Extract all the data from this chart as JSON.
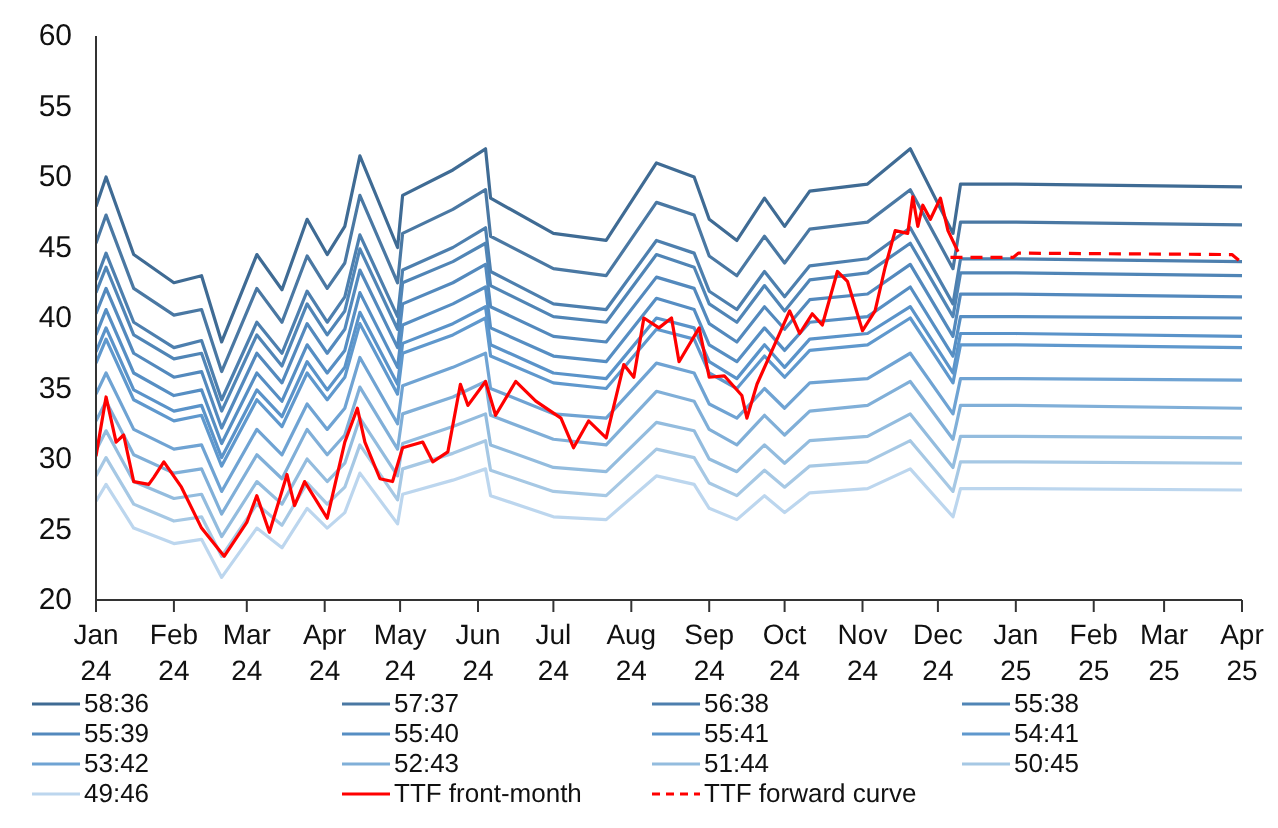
{
  "chart_data": {
    "type": "line",
    "legend": "bottom",
    "line_style": "solid",
    "x": [
      "2024-01-01",
      "2024-01-05",
      "2024-01-16",
      "2024-02-01",
      "2024-02-12",
      "2024-02-20",
      "2024-03-05",
      "2024-03-15",
      "2024-03-25",
      "2024-04-02",
      "2024-04-09",
      "2024-04-15",
      "2024-04-30",
      "2024-05-02",
      "2024-05-22",
      "2024-06-04",
      "2024-06-06",
      "2024-07-01",
      "2024-07-22",
      "2024-08-11",
      "2024-08-26",
      "2024-09-01",
      "2024-09-12",
      "2024-09-23",
      "2024-10-01",
      "2024-10-11",
      "2024-11-03",
      "2024-11-20",
      "2024-12-07",
      "2024-12-10",
      "2025-01-01",
      "2025-04-01"
    ],
    "xlim": [
      "2024-01-01",
      "2025-04-01"
    ],
    "xticks": [
      {
        "value": "2024-01-01",
        "label": "Jan 24"
      },
      {
        "value": "2024-02-01",
        "label": "Feb 24"
      },
      {
        "value": "2024-03-01",
        "label": "Mar 24"
      },
      {
        "value": "2024-04-01",
        "label": "Apr 24"
      },
      {
        "value": "2024-05-01",
        "label": "May 24"
      },
      {
        "value": "2024-06-01",
        "label": "Jun 24"
      },
      {
        "value": "2024-07-01",
        "label": "Jul 24"
      },
      {
        "value": "2024-08-01",
        "label": "Aug 24"
      },
      {
        "value": "2024-09-01",
        "label": "Sep 24"
      },
      {
        "value": "2024-10-01",
        "label": "Oct 24"
      },
      {
        "value": "2024-11-01",
        "label": "Nov 24"
      },
      {
        "value": "2024-12-01",
        "label": "Dec 24"
      },
      {
        "value": "2025-01-01",
        "label": "Jan 25"
      },
      {
        "value": "2025-02-01",
        "label": "Feb 25"
      },
      {
        "value": "2025-03-01",
        "label": "Mar 25"
      },
      {
        "value": "2025-04-01",
        "label": "Apr 25"
      }
    ],
    "ylim": [
      20,
      60
    ],
    "yticks": [
      20,
      25,
      30,
      35,
      40,
      45,
      50,
      55,
      60
    ],
    "series": [
      {
        "name": "58:36",
        "color": "#3f6b94",
        "values": [
          47.9,
          50.0,
          44.5,
          42.5,
          43.0,
          38.3,
          44.5,
          42.0,
          47.0,
          44.5,
          46.5,
          51.5,
          45.0,
          48.7,
          50.5,
          52.0,
          48.5,
          46.0,
          45.5,
          51.0,
          50.0,
          47.0,
          45.5,
          48.5,
          46.5,
          49.0,
          49.5,
          52.0,
          46.0,
          49.5,
          49.5,
          49.3
        ]
      },
      {
        "name": "57:37",
        "color": "#4a78a3",
        "values": [
          45.3,
          47.3,
          42.1,
          40.2,
          40.6,
          36.2,
          42.1,
          39.7,
          44.4,
          42.1,
          43.9,
          48.7,
          42.5,
          46.0,
          47.7,
          49.1,
          45.8,
          43.5,
          43.0,
          48.2,
          47.3,
          44.4,
          43.0,
          45.8,
          43.9,
          46.3,
          46.8,
          49.1,
          43.5,
          46.8,
          46.8,
          46.6
        ]
      },
      {
        "name": "56:38",
        "color": "#4d7fae",
        "values": [
          42.7,
          44.6,
          39.7,
          37.9,
          38.4,
          34.2,
          39.7,
          37.5,
          41.9,
          39.7,
          41.5,
          45.9,
          40.1,
          43.4,
          45.0,
          46.4,
          43.3,
          41.0,
          40.6,
          45.5,
          44.6,
          41.9,
          40.6,
          43.3,
          41.5,
          43.7,
          44.2,
          46.4,
          41.0,
          44.2,
          44.2,
          44.0
        ]
      },
      {
        "name": "55:38",
        "color": "#5085b6",
        "values": [
          41.8,
          43.6,
          38.8,
          37.1,
          37.5,
          33.4,
          38.8,
          36.6,
          41.0,
          38.8,
          40.5,
          44.9,
          39.2,
          42.5,
          44.0,
          45.3,
          42.3,
          40.1,
          39.7,
          44.5,
          43.6,
          41.0,
          39.7,
          42.3,
          40.5,
          42.7,
          43.2,
          45.3,
          40.1,
          43.2,
          43.2,
          43.0
        ]
      },
      {
        "name": "55:39",
        "color": "#5389bd",
        "values": [
          40.3,
          42.1,
          37.5,
          35.8,
          36.2,
          32.2,
          37.5,
          35.4,
          39.6,
          37.5,
          39.2,
          43.4,
          37.9,
          41.0,
          42.5,
          43.8,
          40.8,
          38.7,
          38.3,
          42.9,
          42.1,
          39.6,
          38.3,
          40.8,
          39.2,
          41.3,
          41.7,
          43.8,
          38.7,
          41.7,
          41.7,
          41.5
        ]
      },
      {
        "name": "55:40",
        "color": "#568ec3",
        "values": [
          38.8,
          40.6,
          36.1,
          34.5,
          34.9,
          31.1,
          36.1,
          34.1,
          38.1,
          36.1,
          37.7,
          41.8,
          36.5,
          39.5,
          41.0,
          42.2,
          39.3,
          37.3,
          36.9,
          41.4,
          40.6,
          38.1,
          36.9,
          39.3,
          37.7,
          39.7,
          40.1,
          42.2,
          37.3,
          40.1,
          40.1,
          40.0
        ]
      },
      {
        "name": "55:41",
        "color": "#5a93c9",
        "values": [
          37.6,
          39.3,
          34.9,
          33.4,
          33.8,
          30.1,
          34.9,
          33.0,
          36.9,
          34.9,
          36.5,
          40.4,
          35.3,
          38.2,
          39.6,
          40.8,
          38.1,
          36.1,
          35.7,
          40.0,
          39.3,
          36.9,
          35.7,
          38.1,
          36.5,
          38.5,
          38.9,
          40.8,
          36.1,
          38.9,
          38.9,
          38.7
        ]
      },
      {
        "name": "54:41",
        "color": "#5f98cd",
        "values": [
          36.8,
          38.5,
          34.2,
          32.7,
          33.1,
          29.5,
          34.2,
          32.3,
          36.1,
          34.2,
          35.8,
          39.6,
          34.6,
          37.5,
          38.8,
          40.0,
          37.3,
          35.4,
          35.0,
          39.2,
          38.5,
          36.1,
          35.0,
          37.3,
          35.8,
          37.7,
          38.1,
          40.0,
          35.4,
          38.1,
          38.1,
          37.9
        ]
      },
      {
        "name": "53:42",
        "color": "#6fa3d3",
        "values": [
          34.6,
          36.1,
          32.1,
          30.7,
          31.0,
          27.7,
          32.1,
          30.3,
          33.9,
          32.1,
          33.6,
          37.2,
          32.5,
          35.2,
          36.5,
          37.5,
          35.0,
          33.2,
          32.9,
          36.8,
          36.1,
          33.9,
          32.9,
          35.0,
          33.6,
          35.4,
          35.7,
          37.5,
          33.2,
          35.7,
          35.7,
          35.6
        ]
      },
      {
        "name": "52:43",
        "color": "#80afd8",
        "values": [
          32.7,
          34.1,
          30.3,
          29.0,
          29.3,
          26.1,
          30.3,
          28.6,
          32.1,
          30.3,
          31.7,
          35.1,
          30.7,
          33.2,
          34.4,
          35.5,
          33.1,
          31.4,
          31.0,
          34.8,
          34.1,
          32.1,
          31.0,
          33.1,
          31.7,
          33.4,
          33.8,
          35.5,
          31.4,
          33.8,
          33.8,
          33.6
        ]
      },
      {
        "name": "51:44",
        "color": "#93bcde",
        "values": [
          30.6,
          32.0,
          28.4,
          27.2,
          27.5,
          24.5,
          28.4,
          26.8,
          30.0,
          28.4,
          29.7,
          32.9,
          28.8,
          31.1,
          32.3,
          33.2,
          31.0,
          29.4,
          29.1,
          32.6,
          32.0,
          30.0,
          29.1,
          31.0,
          29.7,
          31.3,
          31.6,
          33.2,
          29.4,
          31.6,
          31.6,
          31.5
        ]
      },
      {
        "name": "50:45",
        "color": "#a6c8e4",
        "values": [
          28.8,
          30.1,
          26.8,
          25.6,
          25.9,
          23.1,
          26.8,
          25.3,
          28.3,
          26.8,
          28.0,
          31.0,
          27.1,
          29.3,
          30.4,
          31.3,
          29.2,
          27.7,
          27.4,
          30.7,
          30.1,
          28.3,
          27.4,
          29.2,
          28.0,
          29.5,
          29.8,
          31.3,
          27.7,
          29.8,
          29.8,
          29.7
        ]
      },
      {
        "name": "49:46",
        "color": "#bcd6ee",
        "values": [
          27.0,
          28.2,
          25.1,
          24.0,
          24.3,
          21.6,
          25.1,
          23.7,
          26.5,
          25.1,
          26.2,
          29.0,
          25.4,
          27.5,
          28.5,
          29.3,
          27.4,
          25.9,
          25.7,
          28.8,
          28.2,
          26.5,
          25.7,
          27.4,
          26.2,
          27.6,
          27.9,
          29.3,
          25.9,
          27.9,
          27.9,
          27.8
        ]
      },
      {
        "name": "TTF front-month",
        "color": "#ff0000",
        "x": [
          "2024-01-01",
          "2024-01-05",
          "2024-01-09",
          "2024-01-12",
          "2024-01-16",
          "2024-01-22",
          "2024-01-24",
          "2024-01-28",
          "2024-02-04",
          "2024-02-12",
          "2024-02-21",
          "2024-03-01",
          "2024-03-05",
          "2024-03-10",
          "2024-03-17",
          "2024-03-20",
          "2024-03-24",
          "2024-04-02",
          "2024-04-09",
          "2024-04-14",
          "2024-04-17",
          "2024-04-23",
          "2024-04-28",
          "2024-05-02",
          "2024-05-10",
          "2024-05-14",
          "2024-05-20",
          "2024-05-25",
          "2024-05-28",
          "2024-06-04",
          "2024-06-08",
          "2024-06-16",
          "2024-06-24",
          "2024-07-04",
          "2024-07-09",
          "2024-07-15",
          "2024-07-22",
          "2024-07-29",
          "2024-08-02",
          "2024-08-06",
          "2024-08-12",
          "2024-08-17",
          "2024-08-20",
          "2024-08-28",
          "2024-09-01",
          "2024-09-07",
          "2024-09-14",
          "2024-09-16",
          "2024-09-20",
          "2024-10-03",
          "2024-10-07",
          "2024-10-12",
          "2024-10-16",
          "2024-10-22",
          "2024-10-26",
          "2024-11-01",
          "2024-11-06",
          "2024-11-10",
          "2024-11-14",
          "2024-11-19",
          "2024-11-21",
          "2024-11-23",
          "2024-11-25",
          "2024-11-28",
          "2024-12-02",
          "2024-12-05",
          "2024-12-09"
        ],
        "values": [
          30.2,
          34.4,
          31.2,
          31.7,
          28.4,
          28.2,
          28.7,
          29.8,
          28.0,
          25.1,
          23.1,
          25.5,
          27.4,
          24.8,
          28.9,
          26.7,
          28.4,
          25.8,
          31.2,
          33.6,
          31.2,
          28.6,
          28.4,
          30.8,
          31.2,
          29.8,
          30.5,
          35.3,
          33.8,
          35.5,
          33.1,
          35.5,
          34.1,
          32.9,
          30.8,
          32.7,
          31.5,
          36.7,
          35.8,
          40.0,
          39.3,
          40.0,
          36.9,
          39.3,
          35.8,
          35.9,
          34.5,
          32.9,
          35.3,
          40.5,
          38.9,
          40.3,
          39.5,
          43.3,
          42.6,
          39.1,
          40.5,
          43.6,
          46.2,
          46.0,
          48.6,
          46.5,
          48.0,
          47.0,
          48.5,
          46.2,
          44.7
        ]
      },
      {
        "name": "TTF forward curve",
        "color": "#ff0000",
        "line_style": "dashed",
        "x": [
          "2024-12-06",
          "2024-12-31",
          "2025-01-02",
          "2025-03-28",
          "2025-04-01"
        ],
        "values": [
          44.3,
          44.3,
          44.6,
          44.5,
          43.9
        ]
      }
    ]
  }
}
